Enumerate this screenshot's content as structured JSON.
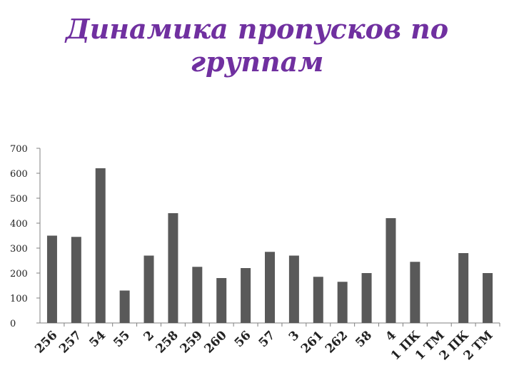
{
  "slide": {
    "title": "Динамика пропусков по группам"
  },
  "chart_data": {
    "type": "bar",
    "title": "",
    "xlabel": "",
    "ylabel": "",
    "ylim": [
      0,
      700
    ],
    "yticks": [
      0,
      100,
      200,
      300,
      400,
      500,
      600,
      700
    ],
    "grid": false,
    "legend": "none",
    "bar_color": "#595959",
    "categories": [
      "256",
      "257",
      "54",
      "55",
      "2",
      "258",
      "259",
      "260",
      "56",
      "57",
      "3",
      "261",
      "262",
      "58",
      "4",
      "1 ПК",
      "1 ТМ",
      "2 ПК",
      "2 ТМ"
    ],
    "values": [
      350,
      345,
      620,
      130,
      270,
      440,
      225,
      180,
      220,
      285,
      270,
      185,
      165,
      200,
      420,
      245,
      0,
      280,
      200
    ]
  },
  "colors": {
    "title": "#7030A0",
    "axis": "#808080"
  }
}
